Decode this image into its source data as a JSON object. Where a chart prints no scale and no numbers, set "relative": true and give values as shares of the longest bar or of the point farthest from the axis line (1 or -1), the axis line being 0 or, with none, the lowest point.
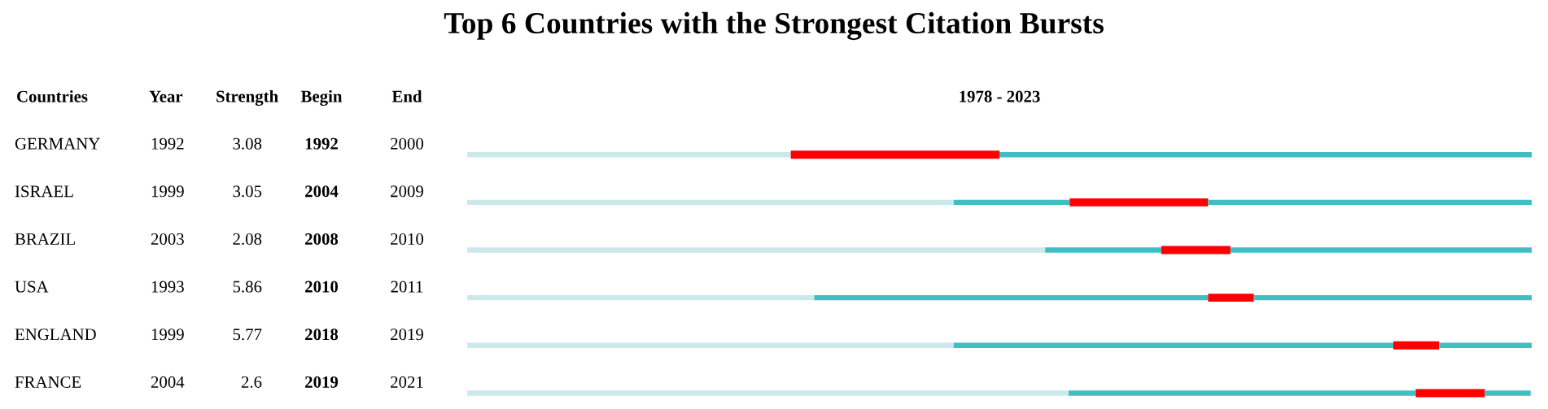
{
  "chart_data": {
    "type": "bar",
    "orientation": "horizontal",
    "stacked": true,
    "relative": true,
    "title": "Top 6 Countries with the Strongest Citation Bursts",
    "categories": [
      "GERMANY",
      "ISRAEL",
      "BRAZIL",
      "USA",
      "ENGLAND",
      "FRANCE"
    ],
    "tick_labels": false,
    "series": [
      {
        "color": "#cbe9eb",
        "values": [
          0.304,
          0.457,
          0.543,
          0.326,
          0.457,
          0.565
        ]
      },
      {
        "color": "#3fbfc4",
        "values": [
          0,
          0.109,
          0.109,
          0.37,
          0.413,
          0.326
        ]
      },
      {
        "color": "#ff0000",
        "values": [
          0.196,
          0.13,
          0.065,
          0.043,
          0.043,
          0.065
        ]
      },
      {
        "color": "#3fbfc4",
        "values": [
          0.5,
          0.304,
          0.283,
          0.261,
          0.087,
          0.043
        ]
      }
    ],
    "annotations": [
      "Countries",
      "Year",
      "Strength",
      "Begin",
      "End",
      "1978 - 2023",
      "1992",
      "3.08",
      "1992",
      "2000",
      "1999",
      "3.05",
      "2004",
      "2009",
      "2003",
      "2.08",
      "2008",
      "2010",
      "1993",
      "5.86",
      "2010",
      "2011",
      "1999",
      "5.77",
      "2018",
      "2019",
      "2004",
      "2.6",
      "2019",
      "2021"
    ]
  }
}
